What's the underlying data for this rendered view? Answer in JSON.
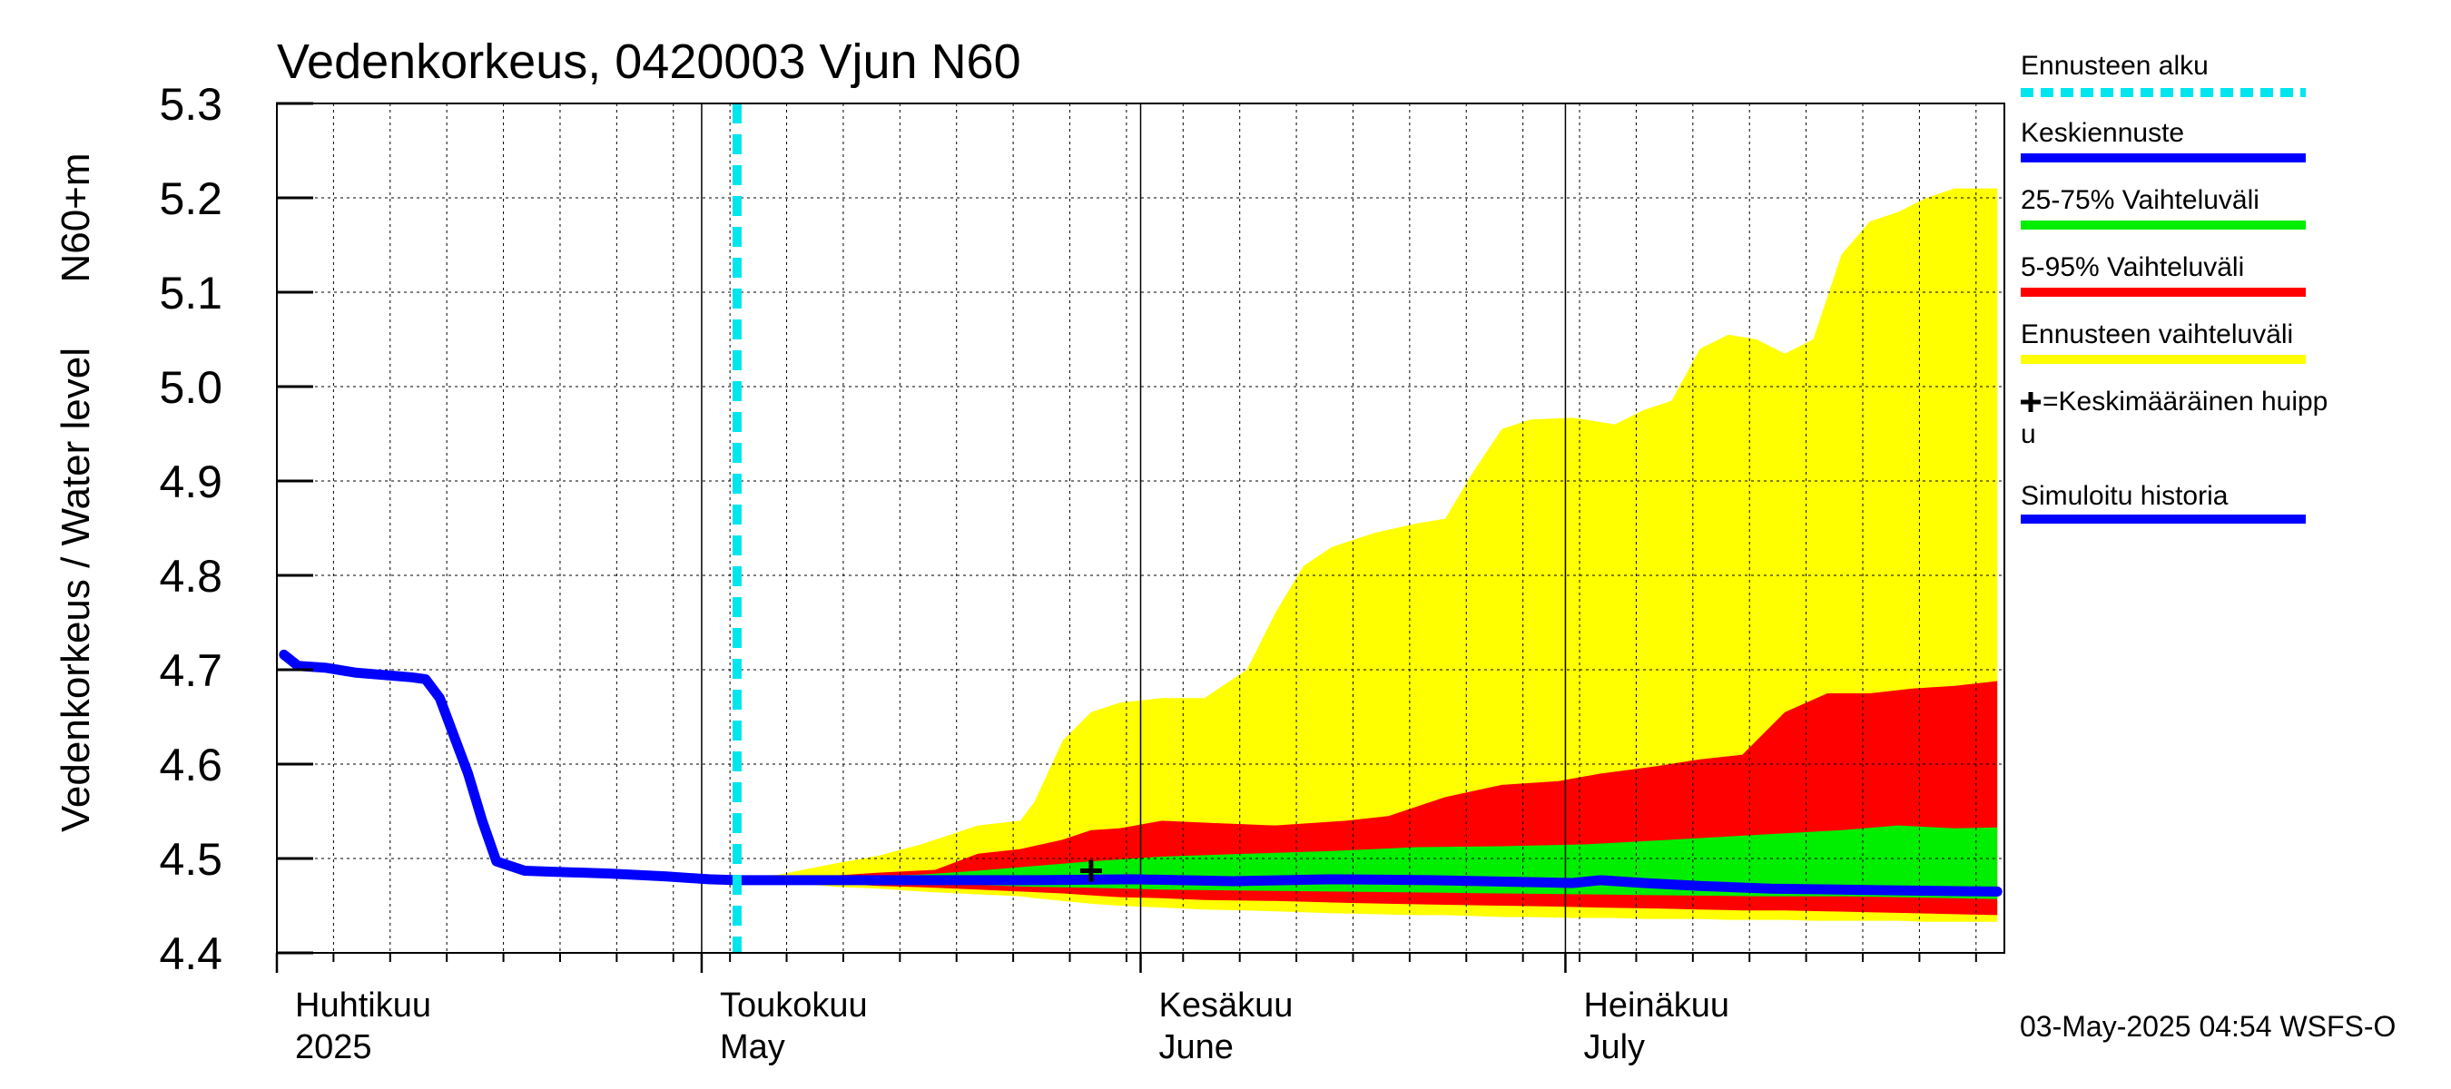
{
  "colors": {
    "yellow": "#ffff00",
    "red": "#ff0000",
    "green": "#00ee00",
    "blue": "#0000ff",
    "cyan": "#00e5ee",
    "grid": "#000000"
  },
  "chart_data": {
    "type": "area",
    "title": "Vedenkorkeus, 0420003 Vjun N60",
    "ylabel_left": "Vedenkorkeus / Water level",
    "ylabel_right": "N60+m",
    "ylim": [
      4.4,
      5.3
    ],
    "yticks": [
      "4.4",
      "4.5",
      "4.6",
      "4.7",
      "4.8",
      "4.9",
      "5.0",
      "5.1",
      "5.2",
      "5.3"
    ],
    "xlim": [
      "2025-04-01",
      "2025-07-31"
    ],
    "grid": true,
    "x_month_labels": [
      {
        "fi": "Huhtikuu",
        "en": "2025",
        "date": "2025-04-01"
      },
      {
        "fi": "Toukokuu",
        "en": "May",
        "date": "2025-05-01"
      },
      {
        "fi": "Kesäkuu",
        "en": "June",
        "date": "2025-06-01"
      },
      {
        "fi": "Heinäkuu",
        "en": "July",
        "date": "2025-07-01"
      }
    ],
    "forecast_start": "2025-05-03",
    "mean_peak": {
      "date": "2025-05-28",
      "value": 4.487
    },
    "simulated_history": {
      "x": [
        "2025-04-01",
        "2025-04-02",
        "2025-04-04",
        "2025-04-06",
        "2025-04-10",
        "2025-04-11",
        "2025-04-12",
        "2025-04-13",
        "2025-04-14",
        "2025-04-15",
        "2025-04-16",
        "2025-04-18",
        "2025-04-20",
        "2025-04-24",
        "2025-04-28",
        "2025-05-01",
        "2025-05-03"
      ],
      "values": [
        4.716,
        4.704,
        4.702,
        4.697,
        4.692,
        4.69,
        4.67,
        4.63,
        4.59,
        4.54,
        4.497,
        4.487,
        4.486,
        4.484,
        4.481,
        4.478,
        4.477
      ]
    },
    "series": [
      {
        "name": "Ennusteen vaihteluväli",
        "color": "#ffff00",
        "x": [
          "2025-05-03",
          "2025-05-06",
          "2025-05-10",
          "2025-05-13",
          "2025-05-16",
          "2025-05-20",
          "2025-05-23",
          "2025-05-24",
          "2025-05-26",
          "2025-05-28",
          "2025-05-30",
          "2025-06-02",
          "2025-06-05",
          "2025-06-08",
          "2025-06-10",
          "2025-06-12",
          "2025-06-14",
          "2025-06-17",
          "2025-06-20",
          "2025-06-22",
          "2025-06-24",
          "2025-06-26",
          "2025-06-28",
          "2025-07-01",
          "2025-07-04",
          "2025-07-06",
          "2025-07-08",
          "2025-07-10",
          "2025-07-12",
          "2025-07-14",
          "2025-07-16",
          "2025-07-18",
          "2025-07-20",
          "2025-07-22",
          "2025-07-24",
          "2025-07-26",
          "2025-07-28",
          "2025-07-31"
        ],
        "upper": [
          4.478,
          4.483,
          4.495,
          4.503,
          4.515,
          4.535,
          4.54,
          4.56,
          4.625,
          4.655,
          4.665,
          4.67,
          4.67,
          4.7,
          4.76,
          4.81,
          4.83,
          4.845,
          4.855,
          4.86,
          4.91,
          4.955,
          4.965,
          4.967,
          4.96,
          4.975,
          4.985,
          5.04,
          5.055,
          5.05,
          5.035,
          5.05,
          5.14,
          5.175,
          5.185,
          5.2,
          5.21,
          5.21
        ],
        "lower": [
          4.477,
          4.475,
          4.47,
          4.468,
          4.465,
          4.462,
          4.46,
          4.458,
          4.455,
          4.452,
          4.45,
          4.448,
          4.446,
          4.445,
          4.444,
          4.443,
          4.442,
          4.441,
          4.44,
          4.44,
          4.439,
          4.438,
          4.438,
          4.437,
          4.437,
          4.436,
          4.436,
          4.436,
          4.435,
          4.435,
          4.435,
          4.434,
          4.434,
          4.434,
          4.434,
          4.433,
          4.433,
          4.433
        ]
      },
      {
        "name": "5-95% Vaihteluväli",
        "color": "#ff0000",
        "x": [
          "2025-05-03",
          "2025-05-08",
          "2025-05-13",
          "2025-05-17",
          "2025-05-20",
          "2025-05-23",
          "2025-05-26",
          "2025-05-28",
          "2025-05-30",
          "2025-06-02",
          "2025-06-05",
          "2025-06-10",
          "2025-06-15",
          "2025-06-18",
          "2025-06-22",
          "2025-06-26",
          "2025-06-30",
          "2025-07-03",
          "2025-07-07",
          "2025-07-10",
          "2025-07-13",
          "2025-07-16",
          "2025-07-19",
          "2025-07-22",
          "2025-07-25",
          "2025-07-28",
          "2025-07-31"
        ],
        "upper": [
          4.478,
          4.48,
          4.485,
          4.488,
          4.505,
          4.51,
          4.52,
          4.53,
          4.532,
          4.54,
          4.538,
          4.535,
          4.54,
          4.545,
          4.565,
          4.578,
          4.582,
          4.59,
          4.598,
          4.605,
          4.61,
          4.655,
          4.675,
          4.675,
          4.68,
          4.683,
          4.688
        ],
        "lower": [
          4.477,
          4.475,
          4.471,
          4.469,
          4.467,
          4.465,
          4.463,
          4.461,
          4.459,
          4.458,
          4.456,
          4.455,
          4.453,
          4.452,
          4.451,
          4.45,
          4.449,
          4.448,
          4.447,
          4.446,
          4.445,
          4.445,
          4.444,
          4.443,
          4.442,
          4.441,
          4.44
        ]
      },
      {
        "name": "25-75% Vaihteluväli",
        "color": "#00ee00",
        "x": [
          "2025-05-03",
          "2025-05-10",
          "2025-05-16",
          "2025-05-20",
          "2025-05-24",
          "2025-05-28",
          "2025-06-02",
          "2025-06-08",
          "2025-06-14",
          "2025-06-20",
          "2025-06-26",
          "2025-07-02",
          "2025-07-08",
          "2025-07-14",
          "2025-07-20",
          "2025-07-24",
          "2025-07-28",
          "2025-07-31"
        ],
        "upper": [
          4.478,
          4.48,
          4.483,
          4.487,
          4.492,
          4.497,
          4.502,
          4.505,
          4.508,
          4.512,
          4.513,
          4.515,
          4.52,
          4.525,
          4.53,
          4.535,
          4.532,
          4.533
        ],
        "lower": [
          4.477,
          4.476,
          4.474,
          4.472,
          4.47,
          4.469,
          4.467,
          4.466,
          4.465,
          4.464,
          4.463,
          4.462,
          4.461,
          4.46,
          4.46,
          4.459,
          4.458,
          4.457
        ]
      },
      {
        "name": "Keskiennuste",
        "color": "#0000ff",
        "x": [
          "2025-05-03",
          "2025-05-10",
          "2025-05-17",
          "2025-05-24",
          "2025-05-31",
          "2025-06-07",
          "2025-06-14",
          "2025-06-21",
          "2025-06-28",
          "2025-07-01",
          "2025-07-03",
          "2025-07-06",
          "2025-07-10",
          "2025-07-15",
          "2025-07-20",
          "2025-07-25",
          "2025-07-31"
        ],
        "values": [
          4.477,
          4.477,
          4.477,
          4.477,
          4.478,
          4.476,
          4.478,
          4.477,
          4.475,
          4.474,
          4.477,
          4.474,
          4.471,
          4.468,
          4.467,
          4.466,
          4.465
        ]
      }
    ],
    "legend": [
      {
        "label": "Ennusteen alku",
        "color": "#00e5ee",
        "style": "dashed"
      },
      {
        "label": "Keskiennuste",
        "color": "#0000ff",
        "style": "line"
      },
      {
        "label": "25-75% Vaihteluväli",
        "color": "#00ee00",
        "style": "line"
      },
      {
        "label": "5-95% Vaihteluväli",
        "color": "#ff0000",
        "style": "line"
      },
      {
        "label": "Ennusteen vaihteluväli",
        "color": "#ffff00",
        "style": "line"
      },
      {
        "label1": "=Keskimääräinen huipp",
        "label2": "u",
        "style": "cross"
      },
      {
        "label": "Simuloitu historia",
        "color": "#0000ff",
        "style": "line"
      }
    ],
    "footer": "03-May-2025 04:54 WSFS-O"
  }
}
